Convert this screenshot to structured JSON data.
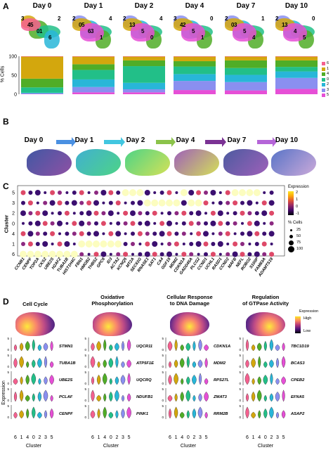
{
  "panels": {
    "A": "A",
    "B": "B",
    "C": "C",
    "D": "D"
  },
  "colors": {
    "c6": "#f4608f",
    "c1": "#d3a70d",
    "c4": "#50ad27",
    "c0": "#22bf88",
    "c2": "#28b6d8",
    "c3": "#8a8ff0",
    "c5": "#e64fd6",
    "magma_low": "#2b0a5a",
    "magma_high": "#fde725"
  },
  "panelA": {
    "days": [
      "Day 0",
      "Day 1",
      "Day 2",
      "Day 4",
      "Day 7",
      "Day 10"
    ],
    "ylabel": "% Cells",
    "yticks": [
      "100",
      "50",
      "0"
    ],
    "umap_labels": [
      [
        "3",
        "5",
        "1",
        "6",
        "2",
        "4",
        "0"
      ],
      [
        "2",
        "5",
        "3",
        "1",
        "4",
        "0",
        "6"
      ],
      [
        "2",
        "3",
        "5",
        "0",
        "4",
        "1"
      ],
      [
        "3",
        "2",
        "5",
        "1",
        "0",
        "4"
      ],
      [
        "2",
        "3",
        "5",
        "4",
        "1",
        "0"
      ],
      [
        "2",
        "3",
        "4",
        "5",
        "0",
        "1"
      ]
    ],
    "legend": [
      "6",
      "1",
      "4",
      "0",
      "2",
      "3",
      "5"
    ],
    "chart_data": {
      "type": "bar",
      "stacked": true,
      "categories": [
        "Day 0",
        "Day 1",
        "Day 2",
        "Day 4",
        "Day 7",
        "Day 10"
      ],
      "ylabel": "% Cells",
      "ylim": [
        0,
        100
      ],
      "series": [
        {
          "name": "6",
          "values": [
            1,
            1,
            1,
            1,
            1,
            1
          ]
        },
        {
          "name": "1",
          "values": [
            58,
            20,
            10,
            12,
            10,
            10
          ]
        },
        {
          "name": "4",
          "values": [
            23,
            15,
            15,
            14,
            20,
            17
          ]
        },
        {
          "name": "0",
          "values": [
            14,
            25,
            44,
            20,
            18,
            12
          ]
        },
        {
          "name": "2",
          "values": [
            2,
            20,
            17,
            18,
            19,
            17
          ]
        },
        {
          "name": "3",
          "values": [
            1,
            14,
            8,
            24,
            22,
            29
          ]
        },
        {
          "name": "5",
          "values": [
            1,
            5,
            5,
            11,
            10,
            14
          ]
        }
      ]
    }
  },
  "panelB": {
    "days": [
      "Day 0",
      "Day 1",
      "Day 2",
      "Day 4",
      "Day 7",
      "Day 10"
    ]
  },
  "panelC": {
    "ylabel": "Cluster",
    "clusters": [
      "5",
      "3",
      "2",
      "0",
      "4",
      "1",
      "6"
    ],
    "genes": [
      "CCNB1",
      "CENPF",
      "TOP2A",
      "CKS2",
      "UBE2S",
      "H2AFZ",
      "TUBA1B",
      "HIST1H4C",
      "FBN1",
      "HMGB2",
      "THBS2",
      "GPC6",
      "ID3",
      "ACTA2",
      "KCNQ5",
      "MT2A",
      "SEC61G",
      "RNASE1",
      "SAT1",
      "CA4",
      "GDF15",
      "MDM2",
      "CDKN1A",
      "GADD45A",
      "PLCG2",
      "CCND1",
      "UCHL1",
      "RASD1",
      "CCND2",
      "MAFB",
      "NEFL",
      "ROBO2",
      "S100P",
      "FAM83A",
      "ADAMTS19"
    ],
    "legend_title_expr": "Expression",
    "legend_expr_ticks": [
      "2",
      "1",
      "0",
      "-1"
    ],
    "legend_title_pct": "% Cells",
    "legend_pct": [
      "25",
      "50",
      "75",
      "100"
    ],
    "chart_data": {
      "type": "dotplot",
      "ylabel": "Cluster",
      "rows_cluster_order": [
        "5",
        "3",
        "2",
        "0",
        "4",
        "1",
        "6"
      ],
      "cluster_6_high_genes": [
        "CCNB1",
        "CENPF",
        "TOP2A",
        "CKS2",
        "UBE2S",
        "H2AFZ",
        "TUBA1B",
        "HIST1H4C"
      ],
      "cluster_1_high_genes": [
        "FBN1",
        "HMGB2",
        "THBS2",
        "GPC6",
        "ID3",
        "ACTA2"
      ],
      "cluster_5_high_genes": [
        "KCNQ5",
        "MT2A",
        "SEC61G",
        "CDKN1A",
        "MAFB",
        "NEFL",
        "ROBO2",
        "S100P"
      ],
      "cluster_3_high_genes": [
        "RNASE1",
        "SAT1",
        "CA4",
        "GDF15",
        "MDM2",
        "GADD45A",
        "PLCG2"
      ]
    }
  },
  "panelD": {
    "titles": [
      "Cell Cycle",
      "Oxidative\nPhosphorylation",
      "Cellular Response\nto DNA Damage",
      "Regulation\nof GTPase Activity"
    ],
    "legend_title": "Expression",
    "legend_high": "High",
    "legend_low": "Low",
    "ylabel": "Expression",
    "xlabel": "Cluster",
    "cluster_order": [
      "6",
      "1",
      "4",
      "0",
      "2",
      "3",
      "5"
    ],
    "genes": [
      [
        "STMN1",
        "TUBA1B",
        "UBE2S",
        "PCLAF",
        "CENPF"
      ],
      [
        "UQCR11",
        "ATP5F1E",
        "UQCRQ",
        "NDUFB1",
        "PINK1"
      ],
      [
        "CDKN1A",
        "MDM2",
        "RPS27L",
        "ZMAT3",
        "RRM2B"
      ],
      [
        "TBC1D19",
        "BCAS3",
        "CPEB2",
        "EFNA5",
        "ASAP2"
      ]
    ],
    "yticks": [
      "5",
      "0"
    ]
  }
}
